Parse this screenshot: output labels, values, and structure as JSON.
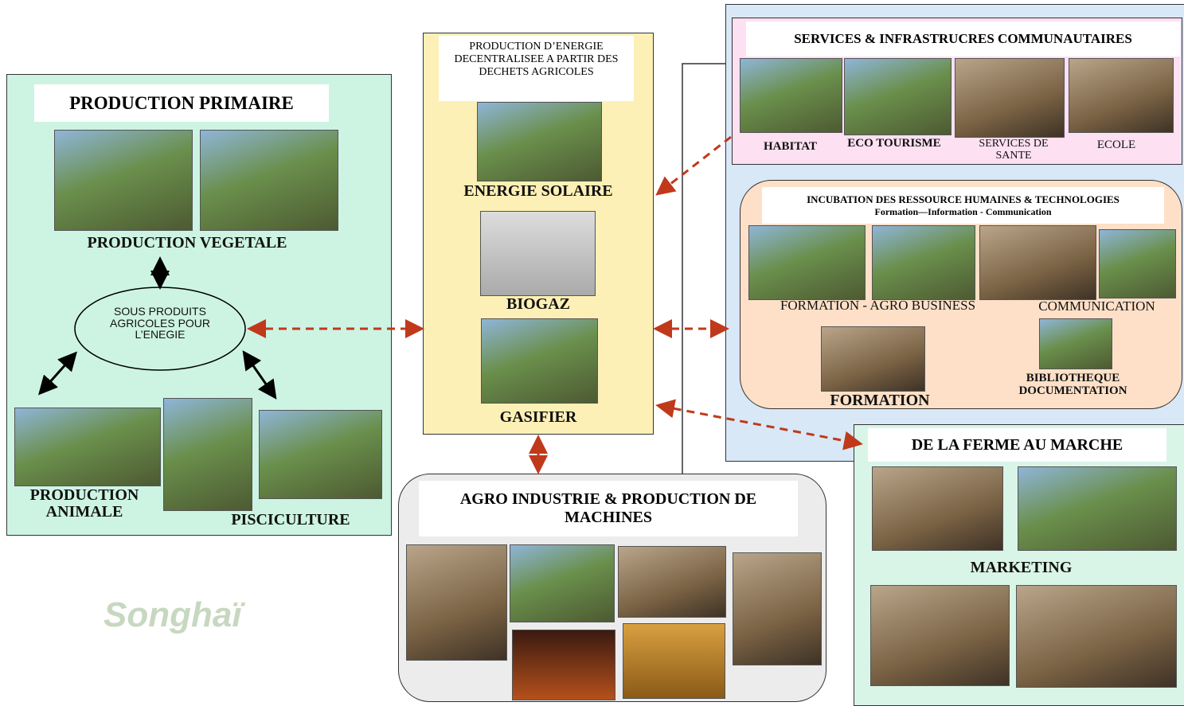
{
  "primary": {
    "title": "PRODUCTION PRIMAIRE",
    "vegetal": "PRODUCTION VEGETALE",
    "byproducts": "SOUS PRODUITS AGRICOLES POUR L’ENEGIE",
    "animal": "PRODUCTION ANIMALE",
    "fish": "PISCICULTURE"
  },
  "energy": {
    "title": "PRODUCTION D’ENERGIE DECENTRALISEE A PARTIR DES DECHETS AGRICOLES",
    "items": [
      "ENERGIE SOLAIRE",
      "BIOGAZ",
      "GASIFIER"
    ]
  },
  "services": {
    "title": "SERVICES &  INFRASTRUCRES COMMUNAUTAIRES",
    "items": [
      "HABITAT",
      "ECO TOURISME",
      "SERVICES DE SANTE",
      "ECOLE"
    ]
  },
  "incubation": {
    "title": "INCUBATION DES RESSOURCE HUMAINES & TECHNOLOGIES",
    "subtitle": "Formation—Information - Communication",
    "items": [
      "FORMATION - AGRO BUSINESS",
      "COMMUNICATION",
      "FORMATION",
      "BIBLIOTHEQUE DOCUMENTATION"
    ]
  },
  "market": {
    "title": "DE LA FERME AU MARCHE",
    "label": "MARKETING"
  },
  "agro": {
    "title": "AGRO INDUSTRIE & PRODUCTION DE MACHINES"
  },
  "logo": "Songhaï"
}
